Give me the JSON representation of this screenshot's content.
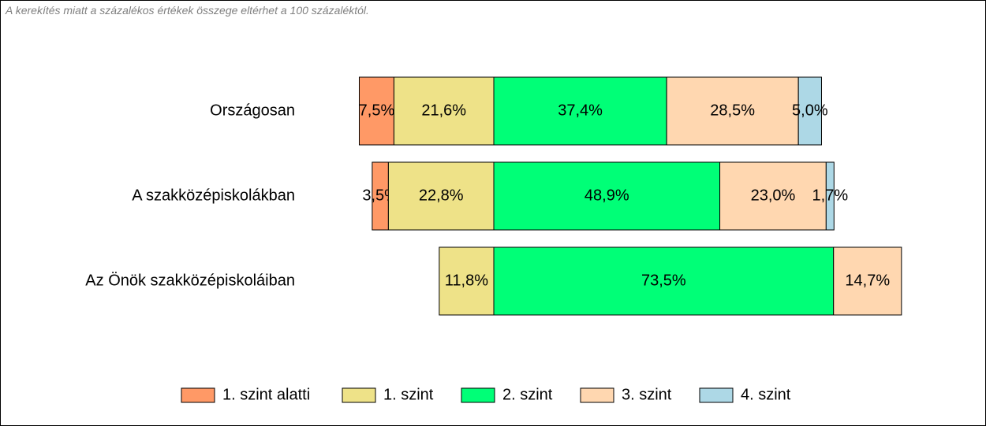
{
  "note": "A kerekítés miatt a  százalékos értékek összege eltérhet a 100 százaléktól.",
  "chart_data": {
    "type": "bar",
    "orientation": "horizontal",
    "stacked": true,
    "centered_on": "2. szint",
    "grid": false,
    "legend_position": "bottom",
    "categories": [
      "Országosan",
      "A szakközépiskolákban",
      "Az Önök szakközépiskoláiban"
    ],
    "series": [
      {
        "name": "1. szint alatti",
        "color": "#FF9966",
        "values": [
          7.5,
          3.5,
          0
        ]
      },
      {
        "name": "1. szint",
        "color": "#EEE288",
        "values": [
          21.6,
          22.8,
          11.8
        ]
      },
      {
        "name": "2. szint",
        "color": "#00FF77",
        "values": [
          37.4,
          48.9,
          73.5
        ]
      },
      {
        "name": "3. szint",
        "color": "#FFD7B0",
        "values": [
          28.5,
          23.0,
          14.7
        ]
      },
      {
        "name": "4. szint",
        "color": "#ADD8E6",
        "values": [
          5.0,
          1.7,
          0
        ]
      }
    ],
    "value_labels": [
      [
        "7,5%",
        "21,6%",
        "37,4%",
        "28,5%",
        "5,0%"
      ],
      [
        "3,5%",
        "22,8%",
        "48,9%",
        "23,0%",
        "1,7%"
      ],
      [
        "",
        "11,8%",
        "73,5%",
        "14,7%",
        ""
      ]
    ]
  }
}
